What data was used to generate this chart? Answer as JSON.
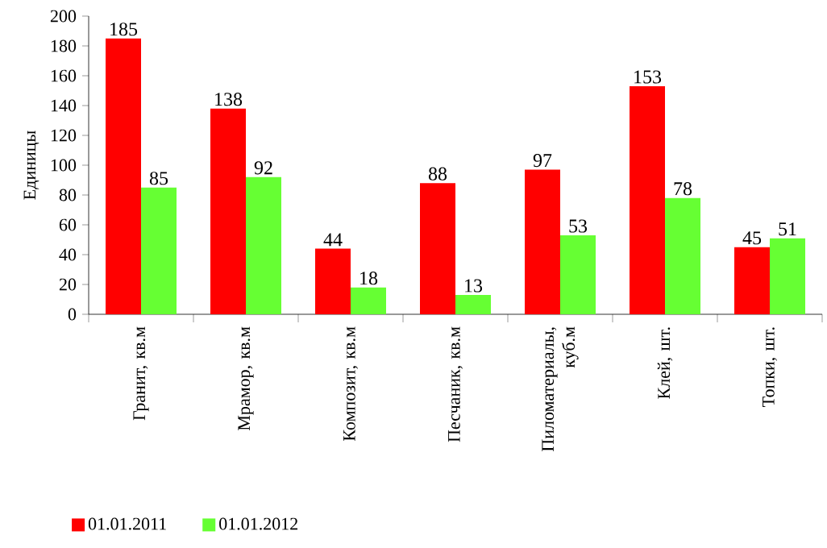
{
  "chart_data": {
    "type": "bar",
    "ylabel": "Единицы",
    "categories": [
      "Гранит, кв.м",
      "Мрамор, кв.м",
      "Композит, кв.м",
      "Песчаник, кв.м",
      "Пиломатериалы, куб.м",
      "Клей, шт.",
      "Топки, шт."
    ],
    "series": [
      {
        "name": "01.01.2011",
        "color": "#ff0000",
        "values": [
          185,
          138,
          44,
          88,
          97,
          153,
          45
        ]
      },
      {
        "name": "01.01.2012",
        "color": "#66ff33",
        "values": [
          85,
          92,
          18,
          13,
          53,
          78,
          51
        ]
      }
    ],
    "ylim": [
      0,
      200
    ],
    "yticks": [
      0,
      20,
      40,
      60,
      80,
      100,
      120,
      140,
      160,
      180,
      200
    ],
    "data_labels": true,
    "legend": "bottom",
    "grid": false
  }
}
